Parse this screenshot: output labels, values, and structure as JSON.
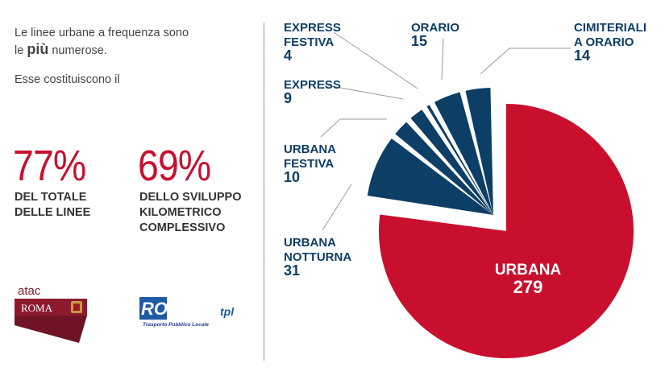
{
  "intro": {
    "line1": "Le linee urbane a frequenza sono",
    "line2_pre": "le ",
    "line2_big": "più",
    "line2_post": " numerose.",
    "line3": "Esse costituiscono il"
  },
  "stats": [
    {
      "value": "77%",
      "label_l1": "DEL TOTALE",
      "label_l2": "DELLE LINEE",
      "label_l3": ""
    },
    {
      "value": "69%",
      "label_l1": "DELLO SVILUPPO",
      "label_l2": "KILOMETRICO",
      "label_l3": "COMPLESSIVO"
    }
  ],
  "logos": {
    "atac_word": "atac",
    "atac_city": "ROMA",
    "roma_main": "ROMA",
    "roma_sub": "tpl",
    "roma_tag": "Trasporto Pubblico Locale"
  },
  "colors": {
    "red": "#c8102e",
    "navy": "#0d3e66",
    "leader": "#9a9a9a"
  },
  "chart_data": {
    "type": "pie",
    "title": "",
    "slices": [
      {
        "name": "URBANA",
        "value": 279,
        "color": "#c8102e"
      },
      {
        "name": "URBANA NOTTURNA",
        "value": 31,
        "color": "#0d3e66"
      },
      {
        "name": "URBANA FESTIVA",
        "value": 10,
        "color": "#0d3e66"
      },
      {
        "name": "EXPRESS",
        "value": 9,
        "color": "#0d3e66"
      },
      {
        "name": "EXPRESS FESTIVA",
        "value": 4,
        "color": "#0d3e66"
      },
      {
        "name": "ORARIO",
        "value": 15,
        "color": "#0d3e66"
      },
      {
        "name": "CIMITERIALI A ORARIO",
        "value": 14,
        "color": "#0d3e66"
      }
    ],
    "labels": [
      {
        "lines": [
          "URBANA",
          "279"
        ]
      },
      {
        "lines": [
          "URBANA",
          "NOTTURNA",
          "31"
        ]
      },
      {
        "lines": [
          "URBANA",
          "FESTIVA",
          "10"
        ]
      },
      {
        "lines": [
          "EXPRESS",
          "9"
        ]
      },
      {
        "lines": [
          "EXPRESS",
          "FESTIVA",
          "4"
        ]
      },
      {
        "lines": [
          "ORARIO",
          "15"
        ]
      },
      {
        "lines": [
          "CIMITERIALI",
          "A ORARIO",
          "14"
        ]
      }
    ]
  }
}
